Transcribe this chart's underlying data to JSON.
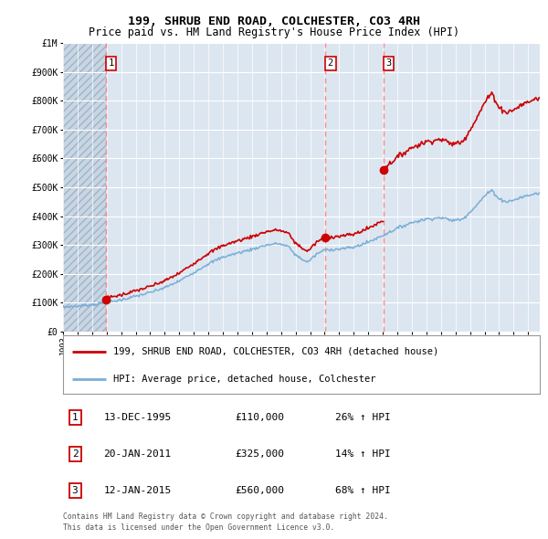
{
  "title": "199, SHRUB END ROAD, COLCHESTER, CO3 4RH",
  "subtitle": "Price paid vs. HM Land Registry's House Price Index (HPI)",
  "legend_line1": "199, SHRUB END ROAD, COLCHESTER, CO3 4RH (detached house)",
  "legend_line2": "HPI: Average price, detached house, Colchester",
  "footnote1": "Contains HM Land Registry data © Crown copyright and database right 2024.",
  "footnote2": "This data is licensed under the Open Government Licence v3.0.",
  "transactions": [
    {
      "num": 1,
      "date": "13-DEC-1995",
      "year": 1995.95,
      "price": 110000,
      "hpi_note": "26% ↑ HPI"
    },
    {
      "num": 2,
      "date": "20-JAN-2011",
      "year": 2011.05,
      "price": 325000,
      "hpi_note": "14% ↑ HPI"
    },
    {
      "num": 3,
      "date": "12-JAN-2015",
      "year": 2015.04,
      "price": 560000,
      "hpi_note": "68% ↑ HPI"
    }
  ],
  "red_line_color": "#cc0000",
  "blue_line_color": "#7aaed6",
  "marker_color": "#cc0000",
  "dashed_line_color": "#ff8888",
  "background_color": "#dce6f1",
  "grid_color": "#ffffff",
  "ylim": [
    0,
    1000000
  ],
  "xlim_start": 1993.0,
  "xlim_end": 2025.8,
  "hatch_end_year": 1995.95
}
